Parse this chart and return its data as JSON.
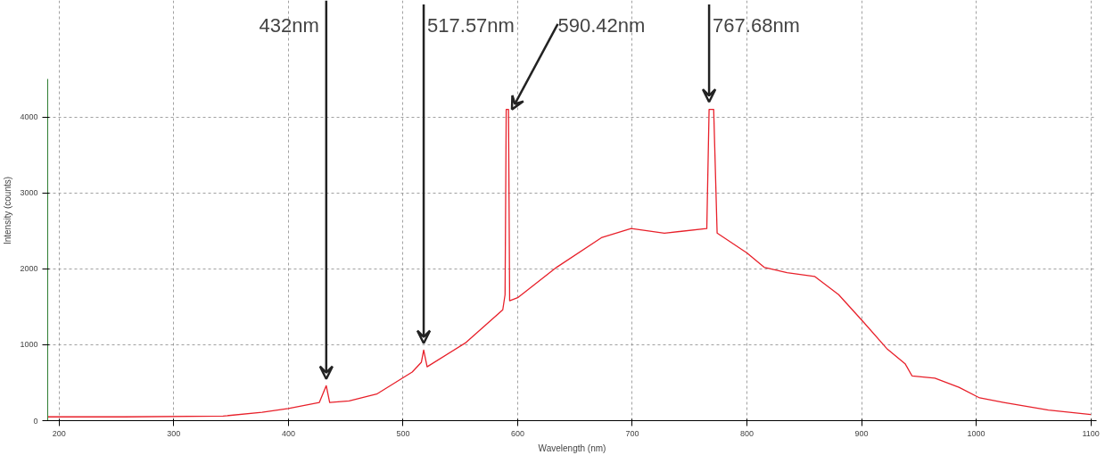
{
  "chart_data": {
    "type": "line",
    "xlabel": "Wavelength (nm)",
    "ylabel": "Intensity (counts)",
    "xlim": [
      190,
      1105
    ],
    "ylim": [
      0,
      4500
    ],
    "xticks": [
      200,
      300,
      400,
      500,
      600,
      700,
      800,
      900,
      1000,
      1100
    ],
    "yticks": [
      0,
      1000,
      2000,
      3000,
      4000
    ],
    "grid": true,
    "marker": "none",
    "line_style": "solid",
    "series": [
      {
        "color": "#e8202a",
        "x": [
          190,
          257,
          343,
          377,
          400,
          427,
          433,
          436,
          453,
          477,
          508,
          516,
          518,
          521,
          555,
          587,
          589,
          590,
          592,
          593,
          600,
          634,
          673,
          699,
          728,
          765,
          767,
          771,
          774,
          800,
          815,
          835,
          859,
          880,
          901,
          922,
          938,
          944,
          964,
          985,
          1003,
          1024,
          1063,
          1100
        ],
        "values": [
          50,
          50,
          60,
          110,
          160,
          240,
          460,
          240,
          260,
          350,
          640,
          770,
          930,
          710,
          1030,
          1460,
          1660,
          4100,
          4100,
          1580,
          1620,
          2020,
          2410,
          2530,
          2470,
          2530,
          4100,
          4100,
          2470,
          2210,
          2020,
          1950,
          1900,
          1660,
          1310,
          950,
          750,
          590,
          560,
          440,
          300,
          240,
          140,
          80
        ]
      }
    ],
    "annotations": [
      {
        "text": "432nm",
        "x": 433,
        "y": 460
      },
      {
        "text": "517.57nm",
        "x": 518,
        "y": 930
      },
      {
        "text": "590.42nm",
        "x": 590,
        "y": 4100
      },
      {
        "text": "767.68nm",
        "x": 767,
        "y": 4100
      }
    ]
  }
}
